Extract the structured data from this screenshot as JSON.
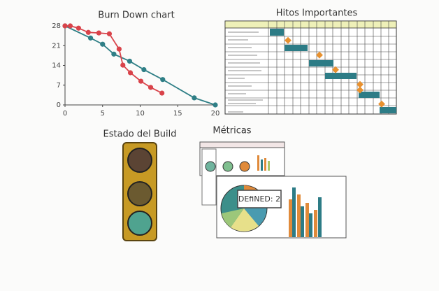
{
  "burndown": {
    "chart_data": {
      "type": "line",
      "title": "Burn Down chart",
      "xlim": [
        0,
        20
      ],
      "ylim": [
        0,
        28
      ],
      "xticks": [
        0,
        5,
        10,
        15,
        20
      ],
      "yticks": [
        0,
        7,
        14,
        21,
        28
      ],
      "series": [
        {
          "color": "#2f7f86",
          "x": [
            0,
            3.4,
            5,
            6.5,
            8.6,
            10.5,
            13,
            17.2,
            20
          ],
          "values": [
            28,
            23.7,
            21.5,
            18,
            15.5,
            12.5,
            9,
            2.5,
            0
          ]
        },
        {
          "color": "#d9434a",
          "x": [
            0,
            0.7,
            1.8,
            3.1,
            4.5,
            5.9,
            7.2,
            7.7,
            8.7,
            10.1,
            11.4,
            12.9
          ],
          "values": [
            28,
            28,
            27.2,
            25.7,
            25.5,
            25.2,
            19.8,
            14.1,
            11.4,
            8.4,
            6.2,
            4.2
          ]
        }
      ]
    }
  },
  "milestones": {
    "title": "Hitos Importantes"
  },
  "build": {
    "title": "Estado del Build"
  },
  "metrics": {
    "title": "Métricas",
    "callout": "DEfiNED: 2"
  }
}
